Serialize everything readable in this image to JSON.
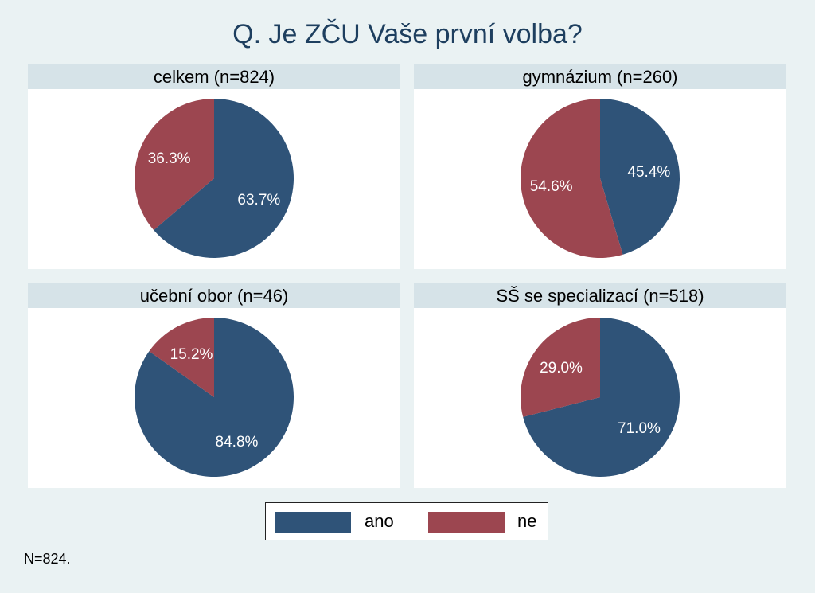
{
  "title": "Q. Je ZČU Vaše první volba?",
  "colors": {
    "ano": "#2f5378",
    "ne": "#9c4650"
  },
  "legend": [
    {
      "label": "ano",
      "color": "#2f5378"
    },
    {
      "label": "ne",
      "color": "#9c4650"
    }
  ],
  "note": "N=824.",
  "chart_data": [
    {
      "type": "pie",
      "title": "celkem (n=824)",
      "categories": [
        "ano",
        "ne"
      ],
      "values": [
        63.7,
        36.3
      ],
      "labels": [
        "63.7%",
        "36.3%"
      ]
    },
    {
      "type": "pie",
      "title": "gymnázium (n=260)",
      "categories": [
        "ano",
        "ne"
      ],
      "values": [
        45.4,
        54.6
      ],
      "labels": [
        "45.4%",
        "54.6%"
      ]
    },
    {
      "type": "pie",
      "title": "učební obor (n=46)",
      "categories": [
        "ano",
        "ne"
      ],
      "values": [
        84.8,
        15.2
      ],
      "labels": [
        "84.8%",
        "15.2%"
      ]
    },
    {
      "type": "pie",
      "title": "SŠ se specializací (n=518)",
      "categories": [
        "ano",
        "ne"
      ],
      "values": [
        71.0,
        29.0
      ],
      "labels": [
        "71.0%",
        "29.0%"
      ]
    }
  ]
}
